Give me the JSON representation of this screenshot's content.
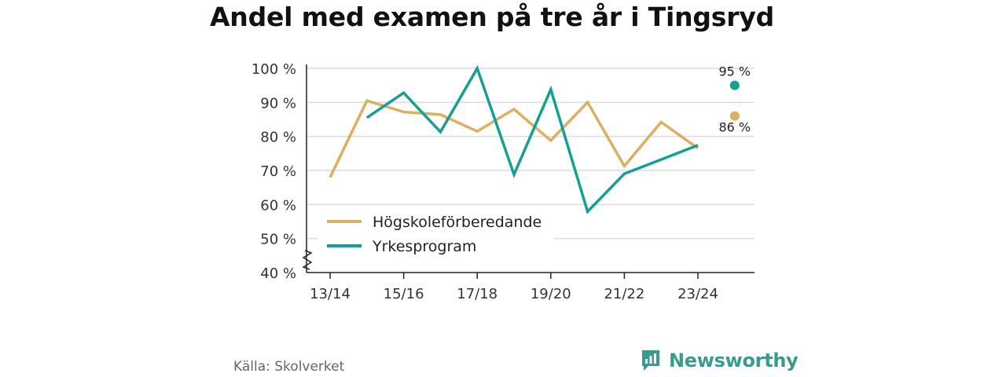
{
  "title": "Andel med examen på tre år i Tingsryd",
  "source": "Källa: Skolverket",
  "brand": {
    "name": "Newsworthy",
    "icon": "newsworthy-logo-icon",
    "color": "#3a9a8f"
  },
  "chart_data": {
    "type": "line",
    "title": "Andel med examen på tre år i Tingsryd",
    "xlabel": "",
    "ylabel": "",
    "x": [
      "13/14",
      "14/15",
      "15/16",
      "16/17",
      "17/18",
      "18/19",
      "19/20",
      "20/21",
      "21/22",
      "22/23",
      "23/24",
      "24/25"
    ],
    "x_tick_labels": [
      "13/14",
      "15/16",
      "17/18",
      "19/20",
      "21/22",
      "23/24"
    ],
    "x_tick_indices": [
      0,
      2,
      4,
      6,
      8,
      10
    ],
    "ylim": [
      40,
      100
    ],
    "y_ticks": [
      40,
      50,
      60,
      70,
      80,
      90,
      100
    ],
    "y_tick_labels": [
      "40 %",
      "50 %",
      "60 %",
      "70 %",
      "80 %",
      "90 %",
      "100 %"
    ],
    "y_axis_break": true,
    "grid": true,
    "legend": "bottom-left",
    "series": [
      {
        "name": "Högskoleförberedande",
        "color": "#dcb05f",
        "values": [
          68,
          90.5,
          87.2,
          86.4,
          81.5,
          88,
          78.8,
          90,
          71.3,
          84.2,
          76.5,
          86
        ],
        "end_label": "86 %"
      },
      {
        "name": "Yrkesprogram",
        "color": "#16a094",
        "values": [
          null,
          85.5,
          92.8,
          81.3,
          100,
          68.8,
          93.8,
          57.9,
          69,
          73.2,
          77.4,
          95
        ],
        "end_label": "95 %"
      }
    ]
  }
}
